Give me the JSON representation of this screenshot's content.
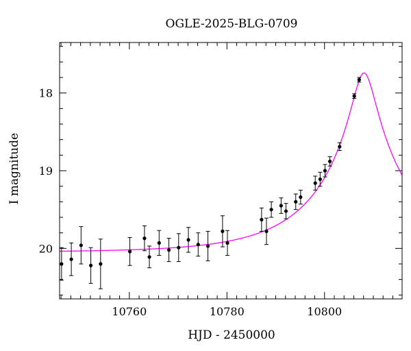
{
  "chart_data": {
    "type": "scatter",
    "title": "OGLE-2025-BLG-0709",
    "xlabel": "HJD - 2450000",
    "ylabel": "I magnitude",
    "xlim": [
      10745.7,
      10815.9
    ],
    "ylim": [
      20.65,
      17.35
    ],
    "y_inverted": true,
    "grid": false,
    "x_ticks": [
      10760,
      10780,
      10800
    ],
    "x_tick_labels": [
      "10760",
      "10780",
      "10800"
    ],
    "y_ticks": [
      18,
      19,
      20
    ],
    "y_tick_labels": [
      "18",
      "19",
      "20"
    ],
    "x_minor_step": 2,
    "y_minor_step": 0.2,
    "colors": {
      "points": "#000000",
      "model": "#ff00ff",
      "frame": "#000000"
    },
    "series": [
      {
        "type": "errorbar",
        "points": [
          {
            "x": 10746.1,
            "y": 20.2,
            "err": 0.21
          },
          {
            "x": 10748.1,
            "y": 20.14,
            "err": 0.21
          },
          {
            "x": 10750.1,
            "y": 19.96,
            "err": 0.24
          },
          {
            "x": 10752.1,
            "y": 20.22,
            "err": 0.23
          },
          {
            "x": 10754.1,
            "y": 20.2,
            "err": 0.32
          },
          {
            "x": 10760.1,
            "y": 20.04,
            "err": 0.18
          },
          {
            "x": 10763.1,
            "y": 19.87,
            "err": 0.16
          },
          {
            "x": 10764.1,
            "y": 20.11,
            "err": 0.14
          },
          {
            "x": 10766.1,
            "y": 19.93,
            "err": 0.16
          },
          {
            "x": 10768.1,
            "y": 20.02,
            "err": 0.15
          },
          {
            "x": 10770.1,
            "y": 19.99,
            "err": 0.18
          },
          {
            "x": 10772.1,
            "y": 19.89,
            "err": 0.16
          },
          {
            "x": 10774.1,
            "y": 19.95,
            "err": 0.15
          },
          {
            "x": 10776.1,
            "y": 19.97,
            "err": 0.19
          },
          {
            "x": 10779.1,
            "y": 19.78,
            "err": 0.2
          },
          {
            "x": 10780.1,
            "y": 19.93,
            "err": 0.16
          },
          {
            "x": 10787.1,
            "y": 19.63,
            "err": 0.15
          },
          {
            "x": 10788.1,
            "y": 19.78,
            "err": 0.17
          },
          {
            "x": 10789.1,
            "y": 19.5,
            "err": 0.1
          },
          {
            "x": 10791.1,
            "y": 19.45,
            "err": 0.1
          },
          {
            "x": 10792.1,
            "y": 19.52,
            "err": 0.1
          },
          {
            "x": 10794.1,
            "y": 19.4,
            "err": 0.1
          },
          {
            "x": 10795.1,
            "y": 19.34,
            "err": 0.09
          },
          {
            "x": 10798.1,
            "y": 19.16,
            "err": 0.09
          },
          {
            "x": 10799.1,
            "y": 19.11,
            "err": 0.09
          },
          {
            "x": 10800.1,
            "y": 19.0,
            "err": 0.08
          },
          {
            "x": 10801.1,
            "y": 18.88,
            "err": 0.06
          },
          {
            "x": 10803.1,
            "y": 18.69,
            "err": 0.05
          },
          {
            "x": 10806.1,
            "y": 18.04,
            "err": 0.03
          },
          {
            "x": 10807.1,
            "y": 17.83,
            "err": 0.03
          }
        ]
      },
      {
        "type": "line",
        "model": {
          "t0": 10808.1,
          "u0": 0.12,
          "tE": 19.0,
          "baseline": 20.05
        }
      }
    ]
  }
}
